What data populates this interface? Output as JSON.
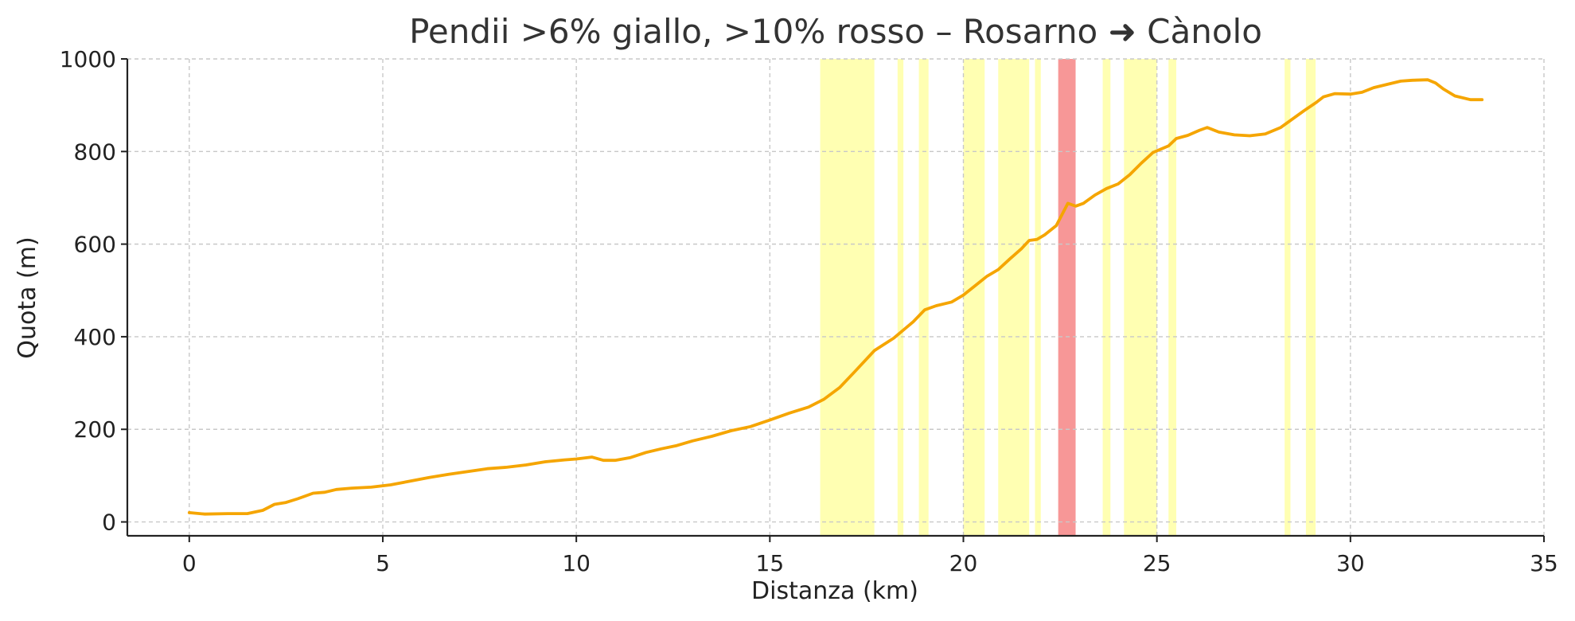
{
  "chart_data": {
    "type": "line",
    "title": "Pendii >6% giallo, >10% rosso – Rosarno ➜ Cànolo",
    "xlabel": "Distanza (km)",
    "ylabel": "Quota (m)",
    "xlim": [
      -1.6,
      35
    ],
    "ylim": [
      -30,
      1000
    ],
    "xticks": [
      0,
      5,
      10,
      15,
      20,
      25,
      30,
      35
    ],
    "yticks": [
      0,
      200,
      400,
      600,
      800,
      1000
    ],
    "grid": true,
    "legend": "none",
    "colors": {
      "line": "#f5a500",
      "moderate_band": "#ffff88",
      "steep_band": "#f26060",
      "grid": "#c8c8c8",
      "axis": "#222222",
      "text": "#333333"
    },
    "series": [
      {
        "x": [
          0,
          0.4,
          1.0,
          1.5,
          1.9,
          2.2,
          2.5,
          2.8,
          3.2,
          3.5,
          3.8,
          4.2,
          4.7,
          5.2,
          5.7,
          6.2,
          6.7,
          7.2,
          7.7,
          8.2,
          8.7,
          9.2,
          9.7,
          10.0,
          10.4,
          10.7,
          11.0,
          11.4,
          11.8,
          12.2,
          12.6,
          13.0,
          13.5,
          14.0,
          14.5,
          15.0,
          15.5,
          16.0,
          16.4,
          16.8,
          17.2,
          17.7,
          18.2,
          18.7,
          19.0,
          19.3,
          19.7,
          20.0,
          20.3,
          20.6,
          20.9,
          21.2,
          21.5,
          21.7,
          21.9,
          22.1,
          22.4,
          22.7,
          22.9,
          23.1,
          23.4,
          23.7,
          24.0,
          24.3,
          24.6,
          24.9,
          25.1,
          25.3,
          25.5,
          25.8,
          26.1,
          26.3,
          26.6,
          27.0,
          27.4,
          27.8,
          28.2,
          28.5,
          28.8,
          29.1,
          29.3,
          29.6,
          30.0,
          30.3,
          30.6,
          31.0,
          31.3,
          31.6,
          32.0,
          32.2,
          32.4,
          32.7,
          33.1,
          33.4
        ],
        "y": [
          20,
          17,
          18,
          18,
          25,
          38,
          42,
          50,
          62,
          64,
          70,
          73,
          75,
          80,
          88,
          96,
          103,
          109,
          115,
          118,
          123,
          130,
          134,
          136,
          140,
          133,
          133,
          139,
          150,
          158,
          165,
          175,
          185,
          197,
          206,
          220,
          235,
          248,
          265,
          290,
          325,
          370,
          397,
          432,
          458,
          467,
          475,
          490,
          510,
          530,
          545,
          568,
          590,
          608,
          610,
          620,
          640,
          688,
          682,
          688,
          706,
          720,
          730,
          750,
          775,
          798,
          805,
          812,
          828,
          835,
          846,
          852,
          842,
          836,
          834,
          838,
          852,
          870,
          888,
          905,
          918,
          925,
          924,
          928,
          938,
          946,
          952,
          954,
          955,
          948,
          935,
          920,
          912,
          912
        ]
      }
    ],
    "moderate_bands": [
      [
        16.3,
        17.7
      ],
      [
        18.3,
        18.45
      ],
      [
        18.85,
        19.1
      ],
      [
        20.0,
        20.55
      ],
      [
        20.9,
        21.7
      ],
      [
        21.85,
        22.0
      ],
      [
        23.6,
        23.8
      ],
      [
        24.15,
        25.0
      ],
      [
        25.3,
        25.5
      ],
      [
        28.3,
        28.45
      ],
      [
        28.85,
        29.1
      ]
    ],
    "steep_bands": [
      [
        22.45,
        22.9
      ]
    ]
  }
}
